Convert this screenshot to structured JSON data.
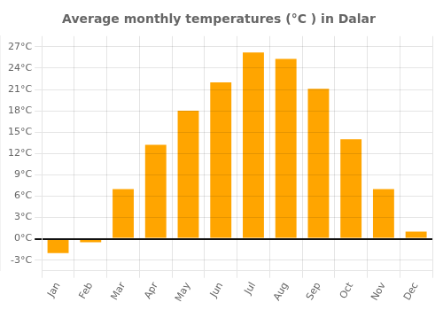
{
  "chart_data": {
    "type": "bar",
    "title": "Average monthly temperatures (°C ) in Dalar",
    "categories": [
      "Jan",
      "Feb",
      "Mar",
      "Apr",
      "May",
      "Jun",
      "Jul",
      "Aug",
      "Sep",
      "Oct",
      "Nov",
      "Dec"
    ],
    "values": [
      -2.0,
      -0.5,
      7.0,
      13.2,
      18.0,
      22.0,
      26.2,
      25.3,
      21.1,
      14.0,
      7.0,
      1.0
    ],
    "color": "#FFA500",
    "ylim": [
      -4.5,
      28.5
    ],
    "yticks": [
      {
        "value": -3,
        "label": "-3°C"
      },
      {
        "value": 0,
        "label": "0°C"
      },
      {
        "value": 3,
        "label": "3°C"
      },
      {
        "value": 6,
        "label": "6°C"
      },
      {
        "value": 9,
        "label": "9°C"
      },
      {
        "value": 12,
        "label": "12°C"
      },
      {
        "value": 15,
        "label": "15°C"
      },
      {
        "value": 18,
        "label": "18°C"
      },
      {
        "value": 21,
        "label": "21°C"
      },
      {
        "value": 24,
        "label": "24°C"
      },
      {
        "value": 27,
        "label": "27°C"
      }
    ],
    "grid": true
  }
}
